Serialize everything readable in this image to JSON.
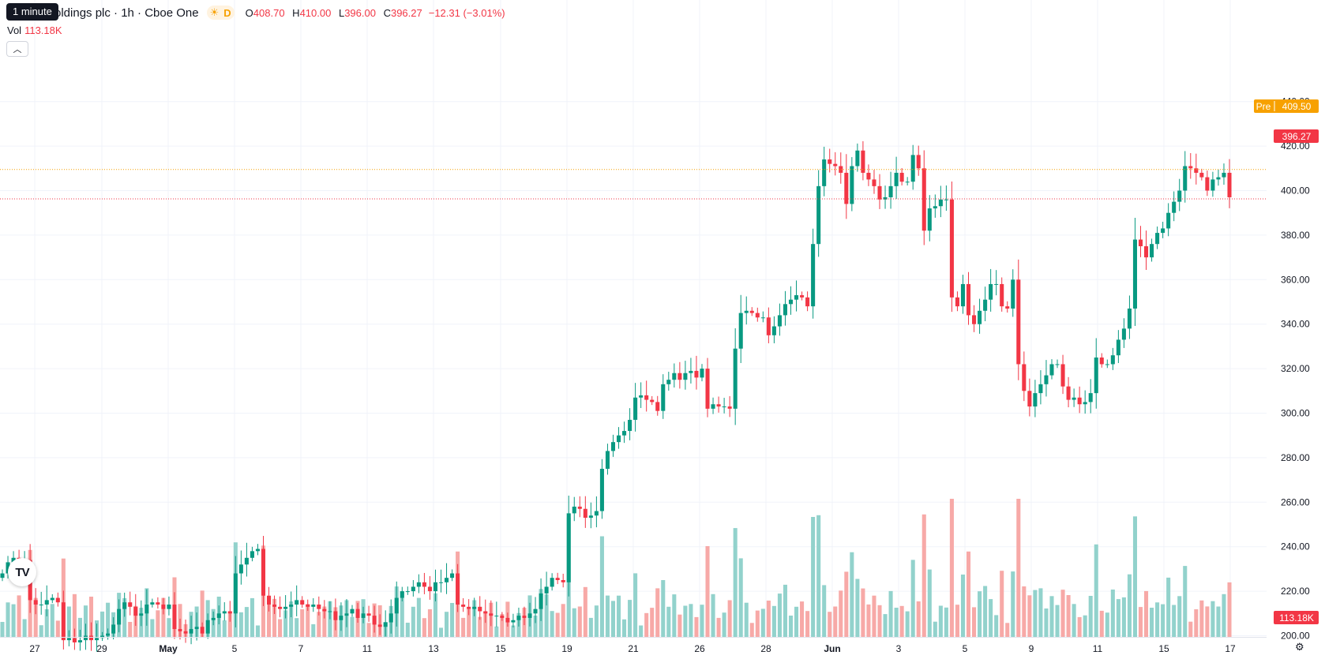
{
  "legend": {
    "tooltip": "1 minute",
    "title": "oldings plc · 1h · Cboe One",
    "market_status_icon": "sun-icon",
    "badge": "D",
    "open_label": "O",
    "open": "408.70",
    "high_label": "H",
    "high": "410.00",
    "low_label": "L",
    "low": "396.00",
    "close_label": "C",
    "close": "396.27",
    "change": "−12.31 (−3.01%)",
    "vol_label": "Vol",
    "vol_value": "113.18K",
    "collapse_icon": "chevron-up-icon"
  },
  "price_axis": {
    "ticks": [
      "440.00",
      "420.00",
      "400.00",
      "380.00",
      "360.00",
      "340.00",
      "320.00",
      "300.00",
      "280.00",
      "260.00",
      "240.00",
      "220.00",
      "200.00"
    ],
    "pre_label": "Pre",
    "pre_value": "409.50",
    "last_value": "396.27",
    "vol_value": "113.18K"
  },
  "time_axis": {
    "labels": [
      "27",
      "29",
      "May",
      "5",
      "7",
      "11",
      "13",
      "15",
      "19",
      "21",
      "26",
      "28",
      "Jun",
      "3",
      "5",
      "9",
      "11",
      "15",
      "17"
    ]
  },
  "colors": {
    "up": "#089981",
    "down": "#f23645",
    "vol_up": "#92d2cc",
    "vol_down": "#f7a9a7",
    "pre": "#f7a100",
    "grid": "#f0f3fa"
  },
  "chart_data": {
    "type": "candlestick",
    "price_range": [
      190,
      445
    ],
    "last_price": 396.27,
    "premarket_price": 409.5,
    "closes": [
      228,
      233,
      235,
      233,
      234,
      216,
      214,
      214,
      216,
      217,
      215,
      198,
      199,
      197,
      198,
      200,
      198,
      199,
      200,
      201,
      205,
      212,
      215,
      213,
      209,
      210,
      214,
      215,
      214,
      212,
      214,
      203,
      202,
      201,
      203,
      204,
      201,
      207,
      208,
      210,
      211,
      210,
      228,
      232,
      235,
      238,
      239,
      218,
      214,
      213,
      212,
      213,
      214,
      216,
      214,
      213,
      214,
      212,
      211,
      211,
      207,
      209,
      210,
      212,
      208,
      210,
      209,
      205,
      204,
      206,
      210,
      217,
      220,
      220,
      222,
      224,
      222,
      220,
      224,
      224,
      226,
      228,
      214,
      213,
      212,
      213,
      211,
      210,
      209,
      209,
      208,
      206,
      207,
      209,
      208,
      210,
      212,
      219,
      222,
      226,
      225,
      224,
      255,
      258,
      257,
      253,
      254,
      256,
      275,
      283,
      287,
      290,
      292,
      297,
      307,
      308,
      306,
      305,
      301,
      313,
      315,
      318,
      315,
      318,
      319,
      316,
      320,
      302,
      304,
      303,
      303,
      302,
      329,
      345,
      346,
      345,
      343,
      343,
      335,
      339,
      344,
      349,
      351,
      353,
      352,
      348,
      376,
      402,
      414,
      412,
      411,
      408,
      394,
      411,
      418,
      408,
      405,
      402,
      396,
      397,
      402,
      408,
      404,
      404,
      416,
      410,
      382,
      392,
      393,
      396,
      396,
      352,
      348,
      358,
      344,
      340,
      346,
      351,
      358,
      358,
      348,
      347,
      360,
      322,
      310,
      303,
      309,
      313,
      317,
      322,
      322,
      312,
      306,
      307,
      304,
      305,
      309,
      325,
      322,
      322,
      326,
      333,
      338,
      347,
      378,
      375,
      370,
      376,
      381,
      383,
      390,
      395,
      400,
      411,
      410,
      408,
      406,
      400,
      405,
      406,
      408,
      397
    ]
  }
}
